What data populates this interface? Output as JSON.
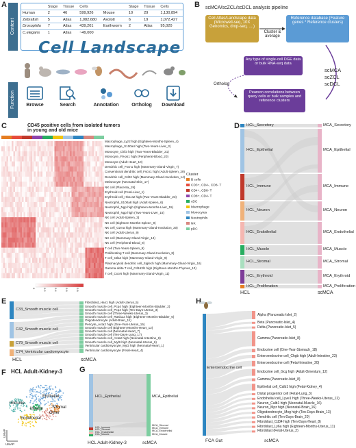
{
  "panel_letters": {
    "a": "A",
    "b": "B",
    "c": "C",
    "d": "D",
    "e": "E",
    "f": "F",
    "g": "G",
    "h": "H"
  },
  "panel_a": {
    "content_label": "Content",
    "function_label": "Function",
    "title": "Cell Landscape",
    "table_header": [
      "",
      "Stage",
      "Tissue",
      "Cells",
      "",
      "Stage",
      "Tissue",
      "Cells"
    ],
    "table_rows": [
      [
        "Human",
        "2",
        "46",
        "599,926",
        "Mouse",
        "10",
        "29",
        "1,130,894"
      ],
      [
        "Zebrafish",
        "5",
        "Atlas",
        "1,082,680",
        "Axolotl",
        "6",
        "19",
        "1,072,427"
      ],
      [
        "Drosophila",
        "7",
        "Atlas",
        "439,201",
        "Earthworm",
        "2",
        "Atlas",
        "95,020"
      ],
      [
        "C.elegans",
        "1",
        "Atlas",
        "~49,000",
        "",
        "",
        "",
        ""
      ]
    ],
    "functions": [
      "Browse",
      "Search",
      "Annotation",
      "Ortholog",
      "Download"
    ]
  },
  "panel_b": {
    "title": "scMCA/scZCL/scDCL analysis pipeline",
    "atlas_box": "Cell Atlas/Landscape data (Microwell-seq, 10X Genomics, drop-seq, ....)",
    "cluster_average": "Cluster & average",
    "reference_box": "Reference database (Feature genes * Reference clusters)",
    "input_box": "Any type of single-cell DGE data or bulk RNA-seq data",
    "ortholog": "Ortholog",
    "tools": [
      "scMCA",
      "scZCL",
      "scDCL"
    ],
    "pearson_box": "Pearson correlations between query cells or bulk samples and reference clusters"
  },
  "panel_c": {
    "title_line1": "CD45 positive cells from isolated tumors",
    "title_line2": "in young and old mice",
    "row_labels": [
      "Macrophage_Lyz2 high (Eighteen-Months-Spleen_4)",
      "Macrophage_S100a4 high (Two-Years-Liver_3)",
      "Monocyte_Chil3 high (Two-Years-Bladder_21)",
      "Monocyte_F9-ps1 high (Peripheral-Blood_20)",
      "Monocyte (Adult-Heart_10)",
      "Dendritic cell_Fscn1 high (Mammary-Gland-Virgin_7)",
      "Conventional dendritic cell_Fscn1 high (Adult-Spleen_29)",
      "Dendritic cell_Cd22 high (Mammary-Gland-Involution_14)",
      "Melanocyte (Neonatal-Skin_17)",
      "NK cell (Placenta_19)",
      "Erythroid cell (Fetal-Liver_1)",
      "Erythroid cell_Hba-a2 high (Two-Years-Bladder_23)",
      "Neutrophil_S100a8 high (Adult-Spleen_6)",
      "Neutrophil_Ngp high (Eighteen-Months-Liver_15)",
      "Neutrophil_Ngp high (Two-Years-Liver_15)",
      "NK cell (Adult-Spleen_3)",
      "NK cell (Eighteen-Months-Spleen_9)",
      "NK cell_Gzma high (Mammary-Gland-Involution_20)",
      "NK cell (Adult-Uterus_9)",
      "NK cell (Mammary-Gland-Virgin_14)",
      "NK cell (Peripheral-Blood_8)",
      "T cell (Two-Years-Spleen_9)",
      "Proliferating T cell (Mammary-Gland-Involution_8)",
      "T cell_Ctla4 high (Mammary-Gland-Virgin_9)",
      "Plasmacytoid dendritic cell_Siglech high (Mammary-Gland-Virgin_16)",
      "Gamma delta T cell_Cd163l1 high (Eighteen-Months-Thymus_10)",
      "T cell_Cxcr6 high (Mammary-Gland-Virgin_11)"
    ],
    "legend_title": "Cluster",
    "legend": [
      {
        "name": "B cells",
        "color": "#e67e22"
      },
      {
        "name": "CD3+, CD4-, CD8- T",
        "color": "#e74c3c"
      },
      {
        "name": "CD4+, CD8- T",
        "color": "#c0392b"
      },
      {
        "name": "CD8+, CD4- T",
        "color": "#8e44ad"
      },
      {
        "name": "cDC",
        "color": "#27ae60"
      },
      {
        "name": "Macrophage",
        "color": "#f1c40f"
      },
      {
        "name": "Monocytes",
        "color": "#a0c4e4"
      },
      {
        "name": "Neutrophils",
        "color": "#2e86c1"
      },
      {
        "name": "NK",
        "color": "#d98880"
      },
      {
        "name": "pDC",
        "color": "#7dcea0"
      }
    ],
    "scale_ticks": [
      "0",
      "0.2",
      "0.4",
      "0.6",
      "0.8"
    ]
  },
  "panel_d": {
    "left_axis": "HCL",
    "right_axis": "scMCA",
    "left_nodes": [
      {
        "name": "HCL_Secretory",
        "color": "#2e86c1"
      },
      {
        "name": "HCL_Epithelial",
        "color": "#a0c4e4"
      },
      {
        "name": "HCL_Immune",
        "color": "#c0392b"
      },
      {
        "name": "HCL_Neuron",
        "color": "#f0b27a"
      },
      {
        "name": "HCL_Endothelial",
        "color": "#f5b7b1"
      },
      {
        "name": "HCL_Muscle",
        "color": "#27ae60"
      },
      {
        "name": "HCL_Stromal",
        "color": "#a9dfbf"
      },
      {
        "name": "HCL_Erythroid",
        "color": "#7d3c98"
      },
      {
        "name": "HCL_Proliferation",
        "color": "#e67e22"
      }
    ],
    "right_nodes": [
      {
        "name": "MCA_Secretory",
        "color": "#e8b4c8"
      },
      {
        "name": "MCA_Epithelial",
        "color": "#e8b4c8"
      },
      {
        "name": "MCA_Immune",
        "color": "#e8b4c8"
      },
      {
        "name": "MCA_Neuron",
        "color": "#e8b4c8"
      },
      {
        "name": "MCA_Endothelial",
        "color": "#e8b4c8"
      },
      {
        "name": "MCA_Muscle",
        "color": "#e8b4c8"
      },
      {
        "name": "MCA_Stromal",
        "color": "#e8b4c8"
      },
      {
        "name": "MCA_Erythroid",
        "color": "#e8b4c8"
      },
      {
        "name": "MCA_Proliferation",
        "color": "#e8b4c8"
      }
    ]
  },
  "panel_e": {
    "left_axis": "HCL",
    "right_axis": "scMCA",
    "left_nodes": [
      "C33_Smooth muscle cell",
      "C42_Smooth muscle cell",
      "C79_Smooth muscle cell",
      "C74_Ventricular cardiomyocyte"
    ],
    "right_nodes": [
      "Fibroblast_Has1 high (Adult-Uterus_5)",
      "Smooth muscle cell_Pcp4 high (Eighteen-Months-Bladder_2)",
      "Smooth muscle cell_Pcp4 high (Ten-Days-Uterus_3)",
      "Smooth muscle cell (Three-Weeks-Uterus_3)",
      "Smooth muscle cell_Rasl11a high (Eighteen-Months-Bladder_6)",
      "Oligodendrocyte (Adult-Brain_11)",
      "Pericyte_Acta2 high (One-Year-Uterus_15)",
      "Smooth muscle cell (Eighteen-Months-Heart_12)",
      "Smooth muscle cell (Neonatal-Heart_7)",
      "Smooth muscle cell (Ten-Days-Lung_17)",
      "Smooth muscle cell_Acta2 high (Neonatal-Intestine_6)",
      "Smooth muscle cell_Myl9 high (Neonatal-Uterus_6)",
      "Ventricular cardiomyocyte_Myl2 high (Neonatal-Heart_1)",
      "Ventricular cardiomyocyte (Fetal-Heart_4)"
    ]
  },
  "panel_f": {
    "title": "HCL Adult-Kidney-3",
    "labels": [
      "Epithelial",
      "Immune",
      "Stromal",
      "Muscle",
      "Other",
      "Endothelial"
    ],
    "xaxis": "UMAP",
    "yaxis": "UMAP"
  },
  "panel_g": {
    "left_nodes": [
      "HCL_Epithelial",
      "HCL_Immune",
      "HCL_Stromal",
      "HCL_Endothelial",
      "HCL_Muscle"
    ],
    "right_nodes": [
      "MCA_Epithelial",
      "MCA_Stromal",
      "MCA_Immune",
      "MCA_Endothelial",
      "MCA_Muscle"
    ],
    "left_axis": "HCL Adult-Kidney-3",
    "right_axis": "scMCA"
  },
  "panel_h": {
    "left_node": "Enteroendocrine cell",
    "left_axis": "FCA Gut",
    "right_axis": "scMCA",
    "right_nodes": [
      "Alpha (Pancreatic-Islet_2)",
      "Beta (Pancreatic-Islet_4)",
      "Delta (Pancreatic-Islet_5)",
      "Gamma (Pancreatic-Islet_8)",
      "Endocrine cell (One-Year-Stomach_18)",
      "Enteroendocrine cell_Chgb high (Adult-Intestine_23)",
      "Enteroendocrine cell (Fetal-Intestine_20)",
      "Endocrine cell_Gcg high (Adult-Omentum_12)",
      "Gamma (Pancreatic-Islet_8)",
      "Epithelial cell_Calb1 high (Fetal-Kidney_4)",
      "Distal progenitor cell (Fetal-Lung_3)",
      "Endothelial cell_Lyve1 high (Three-Weeks-Uterus_12)",
      "Neuron_Calb1 high (Neonatal-Muscle_16)",
      "Neuron_Mpz high (Neonatal-Brain_16)",
      "Oligodendrocyte_Mog high (Ten-Days-Brain_13)",
      "Dendritic cell (Ten-Days-Brain_20)",
      "Fibroblast_Cd34 high (Ten-Days-Heart_8)",
      "Fibroblast_Ly6a high (Eighteen-Months-Uterus_11)",
      "Fibroblast (Fetal-Uterus_2)"
    ]
  },
  "colors": {
    "accent_blue": "#3d6e8f",
    "heat_red": "#d93a3a",
    "pipeline_purple": "#6b3d9a",
    "atlas_gold": "#c8a13a"
  }
}
